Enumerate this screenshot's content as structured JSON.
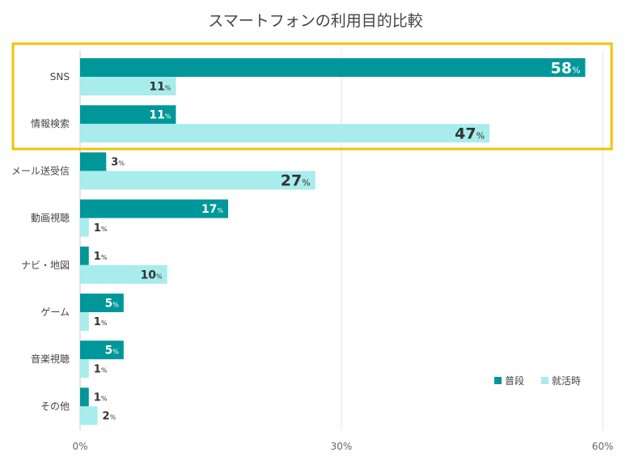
{
  "chart_data": {
    "type": "bar",
    "orientation": "horizontal",
    "title": "スマートフォンの利用目的比較",
    "categories": [
      "SNS",
      "情報検索",
      "メール送受信",
      "動画視聴",
      "ナビ・地図",
      "ゲーム",
      "音楽視聴",
      "その他"
    ],
    "series": [
      {
        "name": "普段",
        "color": "#00979a",
        "values": [
          58,
          11,
          3,
          17,
          1,
          5,
          5,
          1
        ]
      },
      {
        "name": "就活時",
        "color": "#a8ecec",
        "values": [
          11,
          47,
          27,
          1,
          10,
          1,
          1,
          2
        ]
      }
    ],
    "xlim": [
      0,
      60
    ],
    "xticks": [
      0,
      30,
      60
    ],
    "tick_suffix": "%",
    "value_suffix": "%",
    "grid": true,
    "legend_position": "bottom-right",
    "highlight": {
      "categories": [
        "SNS",
        "情報検索"
      ],
      "color": "#f5c200"
    }
  }
}
